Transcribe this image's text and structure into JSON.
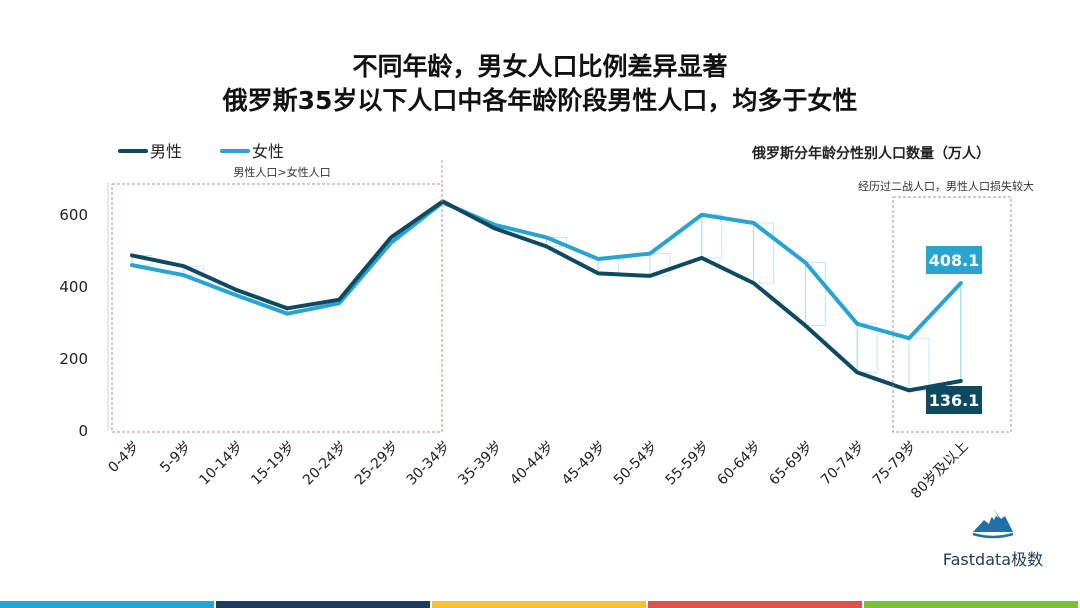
{
  "header": {
    "title_line1": "不同年龄，男女人口比例差异显著",
    "title_line2": "俄罗斯35岁以下人口中各年龄阶段男性人口，均多于女性"
  },
  "logo": {
    "icon": "mountain-logo-icon",
    "text": "Fastdata极数"
  },
  "colors": {
    "male": "#0e4a5f",
    "female": "#29a3cf",
    "box_border": "#c78a85",
    "bottom_bar": [
      "#29a3cf",
      "#1f3b5a",
      "#f2c33a",
      "#d9534f",
      "#7cbd3d"
    ]
  },
  "chart_data": {
    "type": "line",
    "title": "俄罗斯分年龄分性别人口数量（万人）",
    "categories": [
      "0-4岁",
      "5-9岁",
      "10-14岁",
      "15-19岁",
      "20-24岁",
      "25-29岁",
      "30-34岁",
      "35-39岁",
      "40-44岁",
      "45-49岁",
      "50-54岁",
      "55-59岁",
      "60-64岁",
      "65-69岁",
      "70-74岁",
      "75-79岁",
      "80岁及以上"
    ],
    "series": [
      {
        "name": "男性",
        "values": [
          485,
          455,
          390,
          338,
          362,
          535,
          635,
          560,
          510,
          435,
          428,
          478,
          408,
          290,
          160,
          110,
          136.1
        ]
      },
      {
        "name": "女性",
        "values": [
          458,
          430,
          375,
          323,
          352,
          520,
          632,
          570,
          535,
          475,
          490,
          598,
          575,
          465,
          295,
          255,
          408.1
        ]
      }
    ],
    "yticks": [
      0,
      200,
      400,
      600
    ],
    "ylim": [
      0,
      690
    ],
    "grid": false,
    "legend": "top-left",
    "annotations": {
      "left_box": "男性人口>女性人口",
      "right_box": "经历过二战人口，男性人口损失较大",
      "female_last_label": "408.1",
      "male_last_label": "136.1"
    }
  }
}
